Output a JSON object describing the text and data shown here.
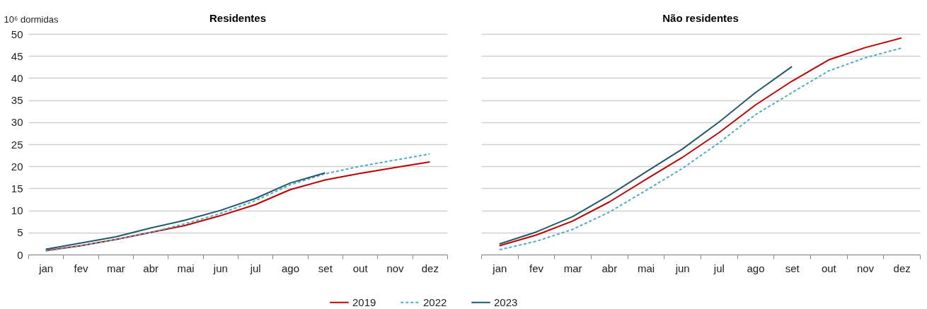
{
  "chart_data": [
    {
      "type": "line",
      "title": "Residentes",
      "ylabel": "10⁶ dormidas",
      "categories": [
        "jan",
        "fev",
        "mar",
        "abr",
        "mai",
        "jun",
        "jul",
        "ago",
        "set",
        "out",
        "nov",
        "dez"
      ],
      "ylim": [
        0,
        50
      ],
      "yticks": [
        0,
        5,
        10,
        15,
        20,
        25,
        30,
        35,
        40,
        45,
        50
      ],
      "grid": "y",
      "legend": "bottom",
      "series": [
        {
          "name": "2019",
          "color": "#c00000",
          "line_style": "solid",
          "values": [
            0.9,
            2.0,
            3.4,
            5.0,
            6.6,
            8.8,
            11.3,
            14.7,
            16.9,
            18.4,
            19.7,
            21.0
          ]
        },
        {
          "name": "2022",
          "color": "#4bacc6",
          "line_style": "dashed",
          "values": [
            0.8,
            2.0,
            3.4,
            5.0,
            7.0,
            9.3,
            12.2,
            15.8,
            18.3,
            20.0,
            21.4,
            22.8
          ]
        },
        {
          "name": "2023",
          "color": "#215968",
          "line_style": "solid",
          "values": [
            1.2,
            2.6,
            4.0,
            6.0,
            7.8,
            10.0,
            12.7,
            16.2,
            18.5,
            null,
            null,
            null
          ]
        }
      ]
    },
    {
      "type": "line",
      "title": "Não residentes",
      "categories": [
        "jan",
        "fev",
        "mar",
        "abr",
        "mai",
        "jun",
        "jul",
        "ago",
        "set",
        "out",
        "nov",
        "dez"
      ],
      "ylim": [
        0,
        50
      ],
      "yticks": [
        0,
        5,
        10,
        15,
        20,
        25,
        30,
        35,
        40,
        45,
        50
      ],
      "grid": "y",
      "legend": "bottom",
      "tick_labels": "x",
      "series": [
        {
          "name": "2019",
          "color": "#c00000",
          "line_style": "solid",
          "values": [
            2.0,
            4.4,
            7.6,
            11.9,
            17.0,
            22.0,
            27.6,
            33.9,
            39.3,
            44.1,
            46.9,
            49.1
          ]
        },
        {
          "name": "2022",
          "color": "#4bacc6",
          "line_style": "dashed",
          "values": [
            1.1,
            3.0,
            5.7,
            9.6,
            14.5,
            19.5,
            25.3,
            31.7,
            36.7,
            41.6,
            44.6,
            46.8
          ]
        },
        {
          "name": "2023",
          "color": "#215968",
          "line_style": "solid",
          "values": [
            2.4,
            5.1,
            8.6,
            13.4,
            18.7,
            23.9,
            30.0,
            36.7,
            42.6,
            null,
            null,
            null
          ]
        }
      ]
    }
  ]
}
